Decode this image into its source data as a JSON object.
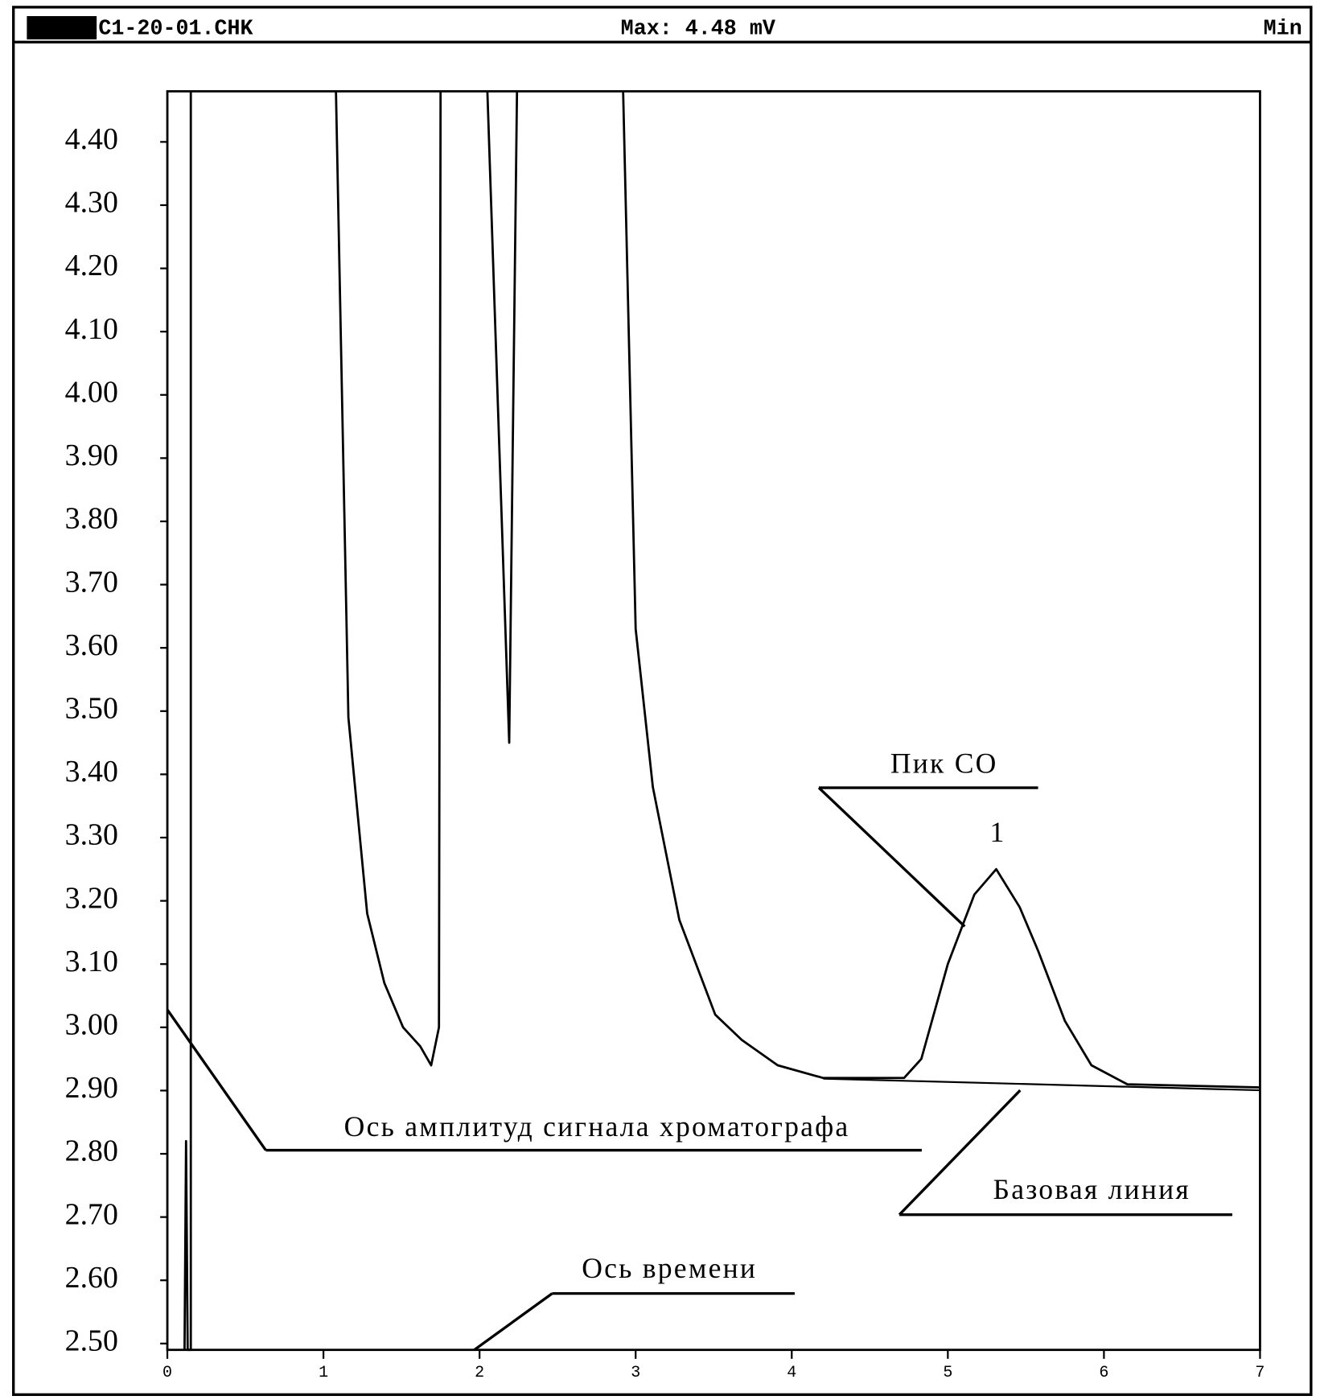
{
  "chart_data": {
    "type": "line",
    "title": "C1-20-01.CHK",
    "subtitle": "Max: 4.48 mV",
    "xlabel": "Min",
    "x": [
      0.11,
      0.12,
      0.13,
      0.15,
      0.15,
      null,
      1.08,
      1.16,
      1.28,
      1.39,
      1.51,
      1.62,
      1.69,
      1.74,
      1.75,
      null,
      2.05,
      2.19,
      2.24,
      null,
      2.92,
      3.0,
      3.11,
      3.28,
      3.51,
      3.68,
      3.91,
      4.2,
      4.72,
      4.83,
      5.0,
      5.17,
      5.31,
      5.46,
      5.58,
      5.75,
      5.92,
      6.15,
      7.0
    ],
    "values": [
      2.49,
      2.82,
      2.49,
      2.49,
      4.48,
      null,
      4.48,
      3.49,
      3.18,
      3.07,
      3.0,
      2.97,
      2.94,
      3.0,
      4.48,
      null,
      4.48,
      3.45,
      4.48,
      null,
      4.48,
      3.63,
      3.38,
      3.17,
      3.02,
      2.98,
      2.94,
      2.92,
      2.92,
      2.95,
      3.1,
      3.21,
      3.25,
      3.19,
      3.12,
      3.01,
      2.94,
      2.91,
      2.905
    ],
    "color": "#000000",
    "xlim": [
      0,
      7
    ],
    "xticks": [
      0,
      1,
      2,
      3,
      4,
      5,
      6,
      7
    ],
    "ylim": [
      2.49,
      4.48
    ],
    "yticks": [
      {
        "value": 2.5,
        "label": "2.50"
      },
      {
        "value": 2.6,
        "label": "2.60"
      },
      {
        "value": 2.7,
        "label": "2.70"
      },
      {
        "value": 2.8,
        "label": "2.80"
      },
      {
        "value": 2.9,
        "label": "2.90"
      },
      {
        "value": 3.0,
        "label": "3.00"
      },
      {
        "value": 3.1,
        "label": "3.10"
      },
      {
        "value": 3.2,
        "label": "3.20"
      },
      {
        "value": 3.3,
        "label": "3.30"
      },
      {
        "value": 3.4,
        "label": "3.40"
      },
      {
        "value": 3.5,
        "label": "3.50"
      },
      {
        "value": 3.6,
        "label": "3.60"
      },
      {
        "value": 3.7,
        "label": "3.70"
      },
      {
        "value": 3.8,
        "label": "3.80"
      },
      {
        "value": 3.9,
        "label": "3.90"
      },
      {
        "value": 4.0,
        "label": "4.00"
      },
      {
        "value": 4.1,
        "label": "4.10"
      },
      {
        "value": 4.2,
        "label": "4.20"
      },
      {
        "value": 4.3,
        "label": "4.30"
      },
      {
        "value": 4.4,
        "label": "4.40"
      }
    ],
    "grid": false,
    "annotations": [
      {
        "text": "Пик CO"
      },
      {
        "text": "1"
      },
      {
        "text": "Ось амплитуд сигнала хроматографа"
      },
      {
        "text": "Базовая линия"
      },
      {
        "text": "Ось времени"
      }
    ]
  }
}
